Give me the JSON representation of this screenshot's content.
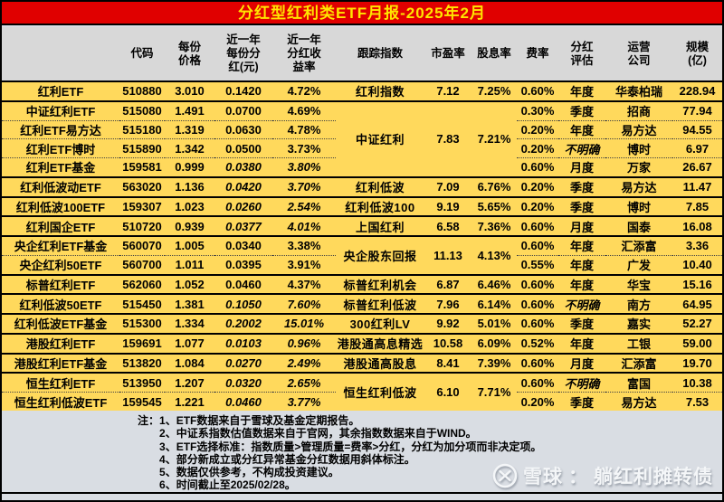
{
  "title": "分红型红利类ETF月报-2025年2月",
  "colors": {
    "title_bg": "#E00000",
    "title_text": "#FFE500",
    "row_bg": "#FFD95C",
    "header_bg": "#D8D8D8",
    "accent_red": "#FE0000",
    "notes_bg": "#D9DDE3"
  },
  "table": {
    "headers": [
      "",
      "代码",
      "每份\n价格",
      "近一年\n每份分\n红(元)",
      "近一年\n分红收\n益率",
      "跟踪指数",
      "市盈率",
      "股息率",
      "费率",
      "分红\n评估",
      "运营\n公司",
      "规模\n(亿)"
    ],
    "groups": [
      {
        "index": "红利指数",
        "pe": "7.12",
        "dy": "7.25%",
        "rows": [
          {
            "name": "红利ETF",
            "code": "510880",
            "price": "3.010",
            "dividend": "0.1420",
            "yield": "4.72%",
            "italic": false,
            "fee": "0.60%",
            "eval": "年度",
            "eval_unclear": false,
            "company": "华泰柏瑞",
            "scale": "228.94"
          }
        ]
      },
      {
        "index": "中证红利",
        "pe": "7.83",
        "dy": "7.21%",
        "rows": [
          {
            "name": "中证红利ETF",
            "code": "515080",
            "price": "1.491",
            "dividend": "0.0700",
            "yield": "4.69%",
            "italic": false,
            "fee": "0.30%",
            "eval": "季度",
            "eval_unclear": false,
            "company": "招商",
            "scale": "77.94"
          },
          {
            "name": "红利ETF易方达",
            "code": "515180",
            "price": "1.319",
            "dividend": "0.0630",
            "yield": "4.78%",
            "italic": false,
            "fee": "0.20%",
            "eval": "年度",
            "eval_unclear": false,
            "company": "易方达",
            "scale": "94.55"
          },
          {
            "name": "红利ETF博时",
            "code": "515890",
            "price": "1.342",
            "dividend": "0.0500",
            "yield": "3.73%",
            "italic": false,
            "fee": "0.20%",
            "eval": "不明确",
            "eval_unclear": true,
            "company": "博时",
            "scale": "6.97"
          },
          {
            "name": "红利ETF基金",
            "code": "159581",
            "price": "0.999",
            "dividend": "0.0380",
            "yield": "3.80%",
            "italic": true,
            "fee": "0.60%",
            "eval": "月度",
            "eval_unclear": false,
            "company": "万家",
            "scale": "26.67"
          }
        ]
      },
      {
        "index": "红利低波",
        "pe": "7.09",
        "dy": "6.76%",
        "rows": [
          {
            "name": "红利低波动ETF",
            "code": "563020",
            "price": "1.136",
            "dividend": "0.0420",
            "yield": "3.70%",
            "italic": true,
            "fee": "0.20%",
            "eval": "季度",
            "eval_unclear": false,
            "company": "易方达",
            "scale": "11.47"
          }
        ]
      },
      {
        "index": "红利低波100",
        "pe": "9.19",
        "dy": "5.65%",
        "rows": [
          {
            "name": "红利低波100ETF",
            "code": "159307",
            "price": "1.023",
            "dividend": "0.0260",
            "yield": "2.54%",
            "italic": true,
            "fee": "0.20%",
            "eval": "季度",
            "eval_unclear": false,
            "company": "博时",
            "scale": "7.85"
          }
        ]
      },
      {
        "index": "上国红利",
        "pe": "6.58",
        "dy": "7.36%",
        "rows": [
          {
            "name": "红利国企ETF",
            "code": "510720",
            "price": "0.939",
            "dividend": "0.0377",
            "yield": "4.01%",
            "italic": true,
            "fee": "0.60%",
            "eval": "月度",
            "eval_unclear": false,
            "company": "国泰",
            "scale": "16.08"
          }
        ]
      },
      {
        "index": "央企股东回报",
        "pe": "11.13",
        "dy": "4.13%",
        "rows": [
          {
            "name": "央企红利ETF基金",
            "code": "560070",
            "price": "1.005",
            "dividend": "0.0340",
            "yield": "3.38%",
            "italic": false,
            "fee": "0.60%",
            "eval": "年度",
            "eval_unclear": false,
            "company": "汇添富",
            "scale": "3.36"
          },
          {
            "name": "央企红利50ETF",
            "code": "560700",
            "price": "1.011",
            "dividend": "0.0395",
            "yield": "3.91%",
            "italic": false,
            "fee": "0.55%",
            "eval": "年度",
            "eval_unclear": false,
            "company": "广发",
            "scale": "10.40"
          }
        ]
      },
      {
        "index": "标普红利机会",
        "pe": "6.87",
        "dy": "6.46%",
        "rows": [
          {
            "name": "标普红利ETF",
            "code": "562060",
            "price": "1.052",
            "dividend": "0.0460",
            "yield": "4.37%",
            "italic": false,
            "fee": "0.60%",
            "eval": "年度",
            "eval_unclear": false,
            "company": "华宝",
            "scale": "15.16"
          }
        ]
      },
      {
        "index": "标普红利低波",
        "pe": "7.96",
        "dy": "6.14%",
        "rows": [
          {
            "name": "红利低波50ETF",
            "code": "515450",
            "price": "1.381",
            "dividend": "0.1050",
            "yield": "7.60%",
            "italic": true,
            "fee": "0.60%",
            "eval": "不明确",
            "eval_unclear": true,
            "company": "南方",
            "scale": "64.95"
          }
        ]
      },
      {
        "index": "300红利LV",
        "pe": "9.92",
        "dy": "5.01%",
        "rows": [
          {
            "name": "红利低波ETF基金",
            "code": "515300",
            "price": "1.334",
            "dividend": "0.2002",
            "yield": "15.01%",
            "italic": true,
            "fee": "0.60%",
            "eval": "季度",
            "eval_unclear": false,
            "company": "嘉实",
            "scale": "52.27"
          }
        ]
      },
      {
        "index": "港股通高息精选",
        "pe": "10.58",
        "dy": "6.09%",
        "rows": [
          {
            "name": "港股红利ETF",
            "code": "159691",
            "price": "1.077",
            "dividend": "0.0103",
            "yield": "0.96%",
            "italic": true,
            "fee": "0.52%",
            "eval": "年度",
            "eval_unclear": false,
            "company": "工银",
            "scale": "59.00"
          }
        ]
      },
      {
        "index": "港股通高股息",
        "pe": "8.41",
        "dy": "7.39%",
        "rows": [
          {
            "name": "港股红利ETF基金",
            "code": "513820",
            "price": "1.084",
            "dividend": "0.0270",
            "yield": "2.49%",
            "italic": true,
            "fee": "0.60%",
            "eval": "月度",
            "eval_unclear": false,
            "company": "汇添富",
            "scale": "19.70"
          }
        ]
      },
      {
        "index": "恒生红利低波",
        "pe": "6.10",
        "dy": "7.71%",
        "rows": [
          {
            "name": "恒生红利ETF",
            "code": "513950",
            "price": "1.207",
            "dividend": "0.0320",
            "yield": "2.65%",
            "italic": true,
            "fee": "0.60%",
            "eval": "不明确",
            "eval_unclear": true,
            "company": "富国",
            "scale": "10.38"
          },
          {
            "name": "恒生红利低波ETF",
            "code": "159545",
            "price": "1.221",
            "dividend": "0.0460",
            "yield": "3.77%",
            "italic": true,
            "fee": "0.20%",
            "eval": "季度",
            "eval_unclear": false,
            "company": "易方达",
            "scale": "7.53"
          }
        ]
      }
    ]
  },
  "notes": {
    "label": "注：",
    "items": [
      "1、ETF数据来自于雪球及基金定期报告。",
      "2、中证系指数估值数据来自于官网，其余指数数据来自于WIND。",
      "3、ETF选择标准：指数质量>管理质量=费率>分红，分红为加分项而非决定项。",
      "4、部分新成立或分红异常基金分红数据用斜体标注。",
      "5、数据仅供参考，不构成投资建议。",
      "6、时间截止至2025/02/28。"
    ]
  },
  "watermark": {
    "logo": "xueqiu-logo",
    "brand": "雪球",
    "separator": "：",
    "account": "躺红利摊转债"
  }
}
